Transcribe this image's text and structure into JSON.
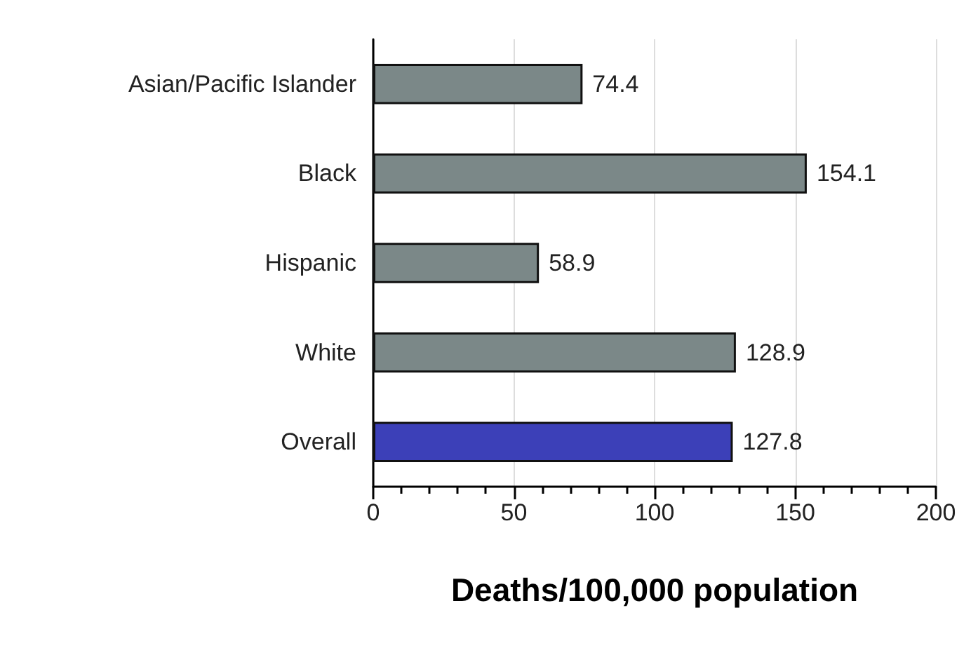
{
  "chart_data": {
    "type": "bar",
    "orientation": "horizontal",
    "categories": [
      "Asian/Pacific Islander",
      "Black",
      "Hispanic",
      "White",
      "Overall"
    ],
    "values": [
      74.4,
      154.1,
      58.9,
      128.9,
      127.8
    ],
    "colors": [
      "#7b8888",
      "#7b8888",
      "#7b8888",
      "#7b8888",
      "#3c40b8"
    ],
    "xlabel": "Deaths/100,000 population",
    "xlim": [
      0,
      200
    ],
    "xticks": [
      0,
      {
        "value": 10,
        "label": null
      },
      {
        "value": 20,
        "label": null
      },
      {
        "value": 30,
        "label": null
      },
      {
        "value": 40,
        "label": null
      },
      50,
      {
        "value": 60,
        "label": null
      },
      {
        "value": 70,
        "label": null
      },
      {
        "value": 80,
        "label": null
      },
      {
        "value": 90,
        "label": null
      },
      100,
      {
        "value": 110,
        "label": null
      },
      {
        "value": 120,
        "label": null
      },
      {
        "value": 130,
        "label": null
      },
      {
        "value": 140,
        "label": null
      },
      150,
      {
        "value": 160,
        "label": null
      },
      {
        "value": 170,
        "label": null
      },
      {
        "value": 180,
        "label": null
      },
      {
        "value": 190,
        "label": null
      },
      200
    ],
    "data_labels": true,
    "grid": "x"
  }
}
